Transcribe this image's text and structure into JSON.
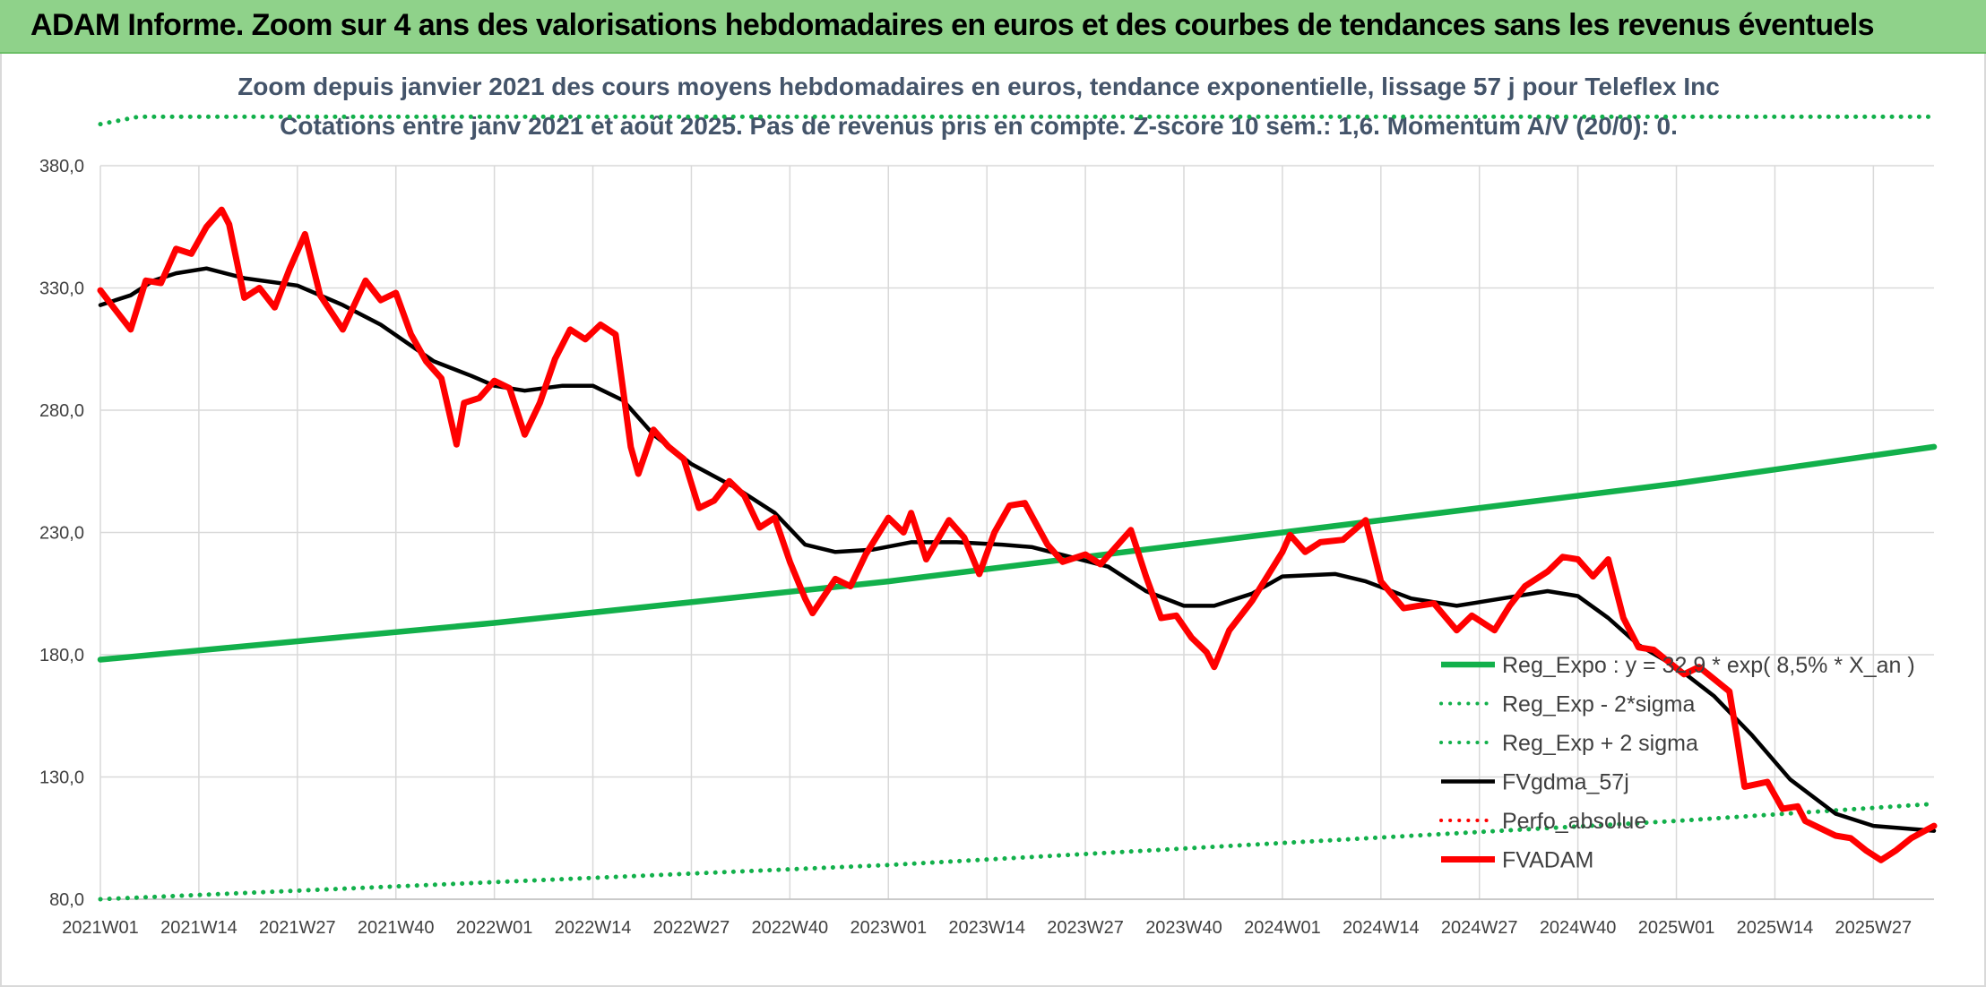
{
  "banner": {
    "title": "ADAM Informe. Zoom sur 4 ans des valorisations hebdomadaires en euros et des courbes de tendances sans les revenus éventuels"
  },
  "colors": {
    "banner_bg": "#8fd28a",
    "trend_green": "#12b04b",
    "price_red": "#ff0000",
    "ma_black": "#000000",
    "subtitle": "#44546a",
    "grid": "#d9d9d9"
  },
  "chart_data": {
    "type": "line",
    "title_lines": [
      "Zoom depuis janvier 2021 des cours moyens hebdomadaires en euros, tendance exponentielle, lissage 57 j pour Teleflex Inc",
      "Cotations entre janv 2021 et août 2025. Pas de revenus pris en compte. Z-score 10 sem.: 1,6. Momentum A/V (20/0): 0."
    ],
    "ylim": [
      80,
      380
    ],
    "y_ticks": [
      "80,0",
      "130,0",
      "180,0",
      "230,0",
      "280,0",
      "330,0",
      "380,0"
    ],
    "y_tick_values": [
      80,
      130,
      180,
      230,
      280,
      330,
      380
    ],
    "x_start_week": "2021W01",
    "x_end_week": "2025W35",
    "x_ticks": [
      "2021W01",
      "2021W14",
      "2021W27",
      "2021W40",
      "2022W01",
      "2022W14",
      "2022W27",
      "2022W40",
      "2023W01",
      "2023W14",
      "2023W27",
      "2023W40",
      "2024W01",
      "2024W14",
      "2024W27",
      "2024W40",
      "2025W01",
      "2025W14",
      "2025W27"
    ],
    "grid": true,
    "legend_position": "bottom-right",
    "series": [
      {
        "name": "Reg_Expo : y = 32,9 * exp( 8,5% *  X_an )",
        "style": "solid-thick",
        "color": "#12b04b",
        "points": [
          [
            "2021W01",
            178
          ],
          [
            "2022W01",
            193
          ],
          [
            "2023W01",
            210
          ],
          [
            "2024W01",
            230
          ],
          [
            "2025W01",
            250
          ],
          [
            "2025W35",
            265
          ]
        ]
      },
      {
        "name": "Reg_Exp - 2*sigma",
        "style": "dotted",
        "color": "#12b04b",
        "points": [
          [
            "2021W01",
            80
          ],
          [
            "2022W01",
            87
          ],
          [
            "2023W01",
            94
          ],
          [
            "2024W01",
            103
          ],
          [
            "2025W01",
            112
          ],
          [
            "2025W35",
            119
          ]
        ]
      },
      {
        "name": "Reg_Exp + 2 sigma",
        "style": "dotted",
        "color": "#12b04b",
        "points": [
          [
            "2021W01",
            397
          ],
          [
            "2021W06",
            400
          ],
          [
            "2021W27",
            400
          ],
          [
            "2025W35",
            400
          ]
        ]
      },
      {
        "name": "FVgdma_57j",
        "style": "solid",
        "color": "#000000",
        "points": [
          [
            "2021W01",
            323
          ],
          [
            "2021W05",
            327
          ],
          [
            "2021W08",
            333
          ],
          [
            "2021W11",
            336
          ],
          [
            "2021W15",
            338
          ],
          [
            "2021W20",
            334
          ],
          [
            "2021W27",
            331
          ],
          [
            "2021W33",
            323
          ],
          [
            "2021W38",
            315
          ],
          [
            "2021W45",
            300
          ],
          [
            "2021W50",
            294
          ],
          [
            "2022W01",
            290
          ],
          [
            "2022W05",
            288
          ],
          [
            "2022W10",
            290
          ],
          [
            "2022W14",
            290
          ],
          [
            "2022W18",
            284
          ],
          [
            "2022W22",
            270
          ],
          [
            "2022W27",
            258
          ],
          [
            "2022W33",
            248
          ],
          [
            "2022W38",
            238
          ],
          [
            "2022W42",
            225
          ],
          [
            "2022W46",
            222
          ],
          [
            "2022W51",
            223
          ],
          [
            "2023W04",
            226
          ],
          [
            "2023W10",
            226
          ],
          [
            "2023W16",
            225
          ],
          [
            "2023W20",
            224
          ],
          [
            "2023W25",
            220
          ],
          [
            "2023W30",
            216
          ],
          [
            "2023W35",
            206
          ],
          [
            "2023W40",
            200
          ],
          [
            "2023W44",
            200
          ],
          [
            "2023W49",
            205
          ],
          [
            "2024W01",
            212
          ],
          [
            "2024W08",
            213
          ],
          [
            "2024W12",
            210
          ],
          [
            "2024W18",
            203
          ],
          [
            "2024W24",
            200
          ],
          [
            "2024W30",
            203
          ],
          [
            "2024W36",
            206
          ],
          [
            "2024W40",
            204
          ],
          [
            "2024W44",
            195
          ],
          [
            "2024W48",
            184
          ],
          [
            "2025W01",
            175
          ],
          [
            "2025W06",
            163
          ],
          [
            "2025W11",
            147
          ],
          [
            "2025W16",
            129
          ],
          [
            "2025W22",
            115
          ],
          [
            "2025W27",
            110
          ],
          [
            "2025W35",
            108
          ]
        ]
      },
      {
        "name": "Perfo_absolue",
        "style": "dotted",
        "color": "#ff0000",
        "points": []
      },
      {
        "name": "FVADAM",
        "style": "solid-thick",
        "color": "#ff0000",
        "points": [
          [
            "2021W01",
            329
          ],
          [
            "2021W03",
            321
          ],
          [
            "2021W05",
            313
          ],
          [
            "2021W07",
            333
          ],
          [
            "2021W09",
            332
          ],
          [
            "2021W11",
            346
          ],
          [
            "2021W13",
            344
          ],
          [
            "2021W15",
            355
          ],
          [
            "2021W17",
            362
          ],
          [
            "2021W18",
            356
          ],
          [
            "2021W20",
            326
          ],
          [
            "2021W22",
            330
          ],
          [
            "2021W24",
            322
          ],
          [
            "2021W26",
            338
          ],
          [
            "2021W28",
            352
          ],
          [
            "2021W30",
            327
          ],
          [
            "2021W33",
            313
          ],
          [
            "2021W36",
            333
          ],
          [
            "2021W38",
            325
          ],
          [
            "2021W40",
            328
          ],
          [
            "2021W42",
            311
          ],
          [
            "2021W44",
            300
          ],
          [
            "2021W46",
            293
          ],
          [
            "2021W48",
            266
          ],
          [
            "2021W49",
            283
          ],
          [
            "2021W51",
            285
          ],
          [
            "2022W01",
            292
          ],
          [
            "2022W03",
            289
          ],
          [
            "2022W05",
            270
          ],
          [
            "2022W07",
            283
          ],
          [
            "2022W09",
            301
          ],
          [
            "2022W11",
            313
          ],
          [
            "2022W13",
            309
          ],
          [
            "2022W15",
            315
          ],
          [
            "2022W17",
            311
          ],
          [
            "2022W19",
            265
          ],
          [
            "2022W20",
            254
          ],
          [
            "2022W22",
            272
          ],
          [
            "2022W24",
            265
          ],
          [
            "2022W26",
            260
          ],
          [
            "2022W28",
            240
          ],
          [
            "2022W30",
            243
          ],
          [
            "2022W32",
            251
          ],
          [
            "2022W34",
            245
          ],
          [
            "2022W36",
            232
          ],
          [
            "2022W38",
            236
          ],
          [
            "2022W40",
            218
          ],
          [
            "2022W42",
            203
          ],
          [
            "2022W43",
            197
          ],
          [
            "2022W46",
            211
          ],
          [
            "2022W48",
            208
          ],
          [
            "2022W50",
            221
          ],
          [
            "2023W01",
            236
          ],
          [
            "2023W03",
            230
          ],
          [
            "2023W04",
            238
          ],
          [
            "2023W06",
            219
          ],
          [
            "2023W09",
            235
          ],
          [
            "2023W11",
            228
          ],
          [
            "2023W13",
            213
          ],
          [
            "2023W15",
            230
          ],
          [
            "2023W17",
            241
          ],
          [
            "2023W19",
            242
          ],
          [
            "2023W22",
            225
          ],
          [
            "2023W24",
            218
          ],
          [
            "2023W27",
            221
          ],
          [
            "2023W29",
            217
          ],
          [
            "2023W33",
            231
          ],
          [
            "2023W35",
            212
          ],
          [
            "2023W37",
            195
          ],
          [
            "2023W39",
            196
          ],
          [
            "2023W41",
            187
          ],
          [
            "2023W43",
            181
          ],
          [
            "2023W44",
            175
          ],
          [
            "2023W46",
            190
          ],
          [
            "2023W49",
            202
          ],
          [
            "2024W01",
            222
          ],
          [
            "2024W02",
            229
          ],
          [
            "2024W04",
            222
          ],
          [
            "2024W06",
            226
          ],
          [
            "2024W09",
            227
          ],
          [
            "2024W12",
            235
          ],
          [
            "2024W14",
            210
          ],
          [
            "2024W17",
            199
          ],
          [
            "2024W21",
            201
          ],
          [
            "2024W24",
            190
          ],
          [
            "2024W26",
            196
          ],
          [
            "2024W29",
            190
          ],
          [
            "2024W31",
            200
          ],
          [
            "2024W33",
            208
          ],
          [
            "2024W36",
            214
          ],
          [
            "2024W38",
            220
          ],
          [
            "2024W40",
            219
          ],
          [
            "2024W42",
            212
          ],
          [
            "2024W44",
            219
          ],
          [
            "2024W46",
            195
          ],
          [
            "2024W48",
            183
          ],
          [
            "2024W50",
            182
          ],
          [
            "2025W02",
            172
          ],
          [
            "2025W04",
            175
          ],
          [
            "2025W08",
            165
          ],
          [
            "2025W09",
            146
          ],
          [
            "2025W10",
            126
          ],
          [
            "2025W13",
            128
          ],
          [
            "2025W15",
            117
          ],
          [
            "2025W17",
            118
          ],
          [
            "2025W18",
            112
          ],
          [
            "2025W22",
            106
          ],
          [
            "2025W24",
            105
          ],
          [
            "2025W26",
            100
          ],
          [
            "2025W28",
            96
          ],
          [
            "2025W30",
            100
          ],
          [
            "2025W32",
            105
          ],
          [
            "2025W35",
            110
          ]
        ]
      }
    ]
  }
}
